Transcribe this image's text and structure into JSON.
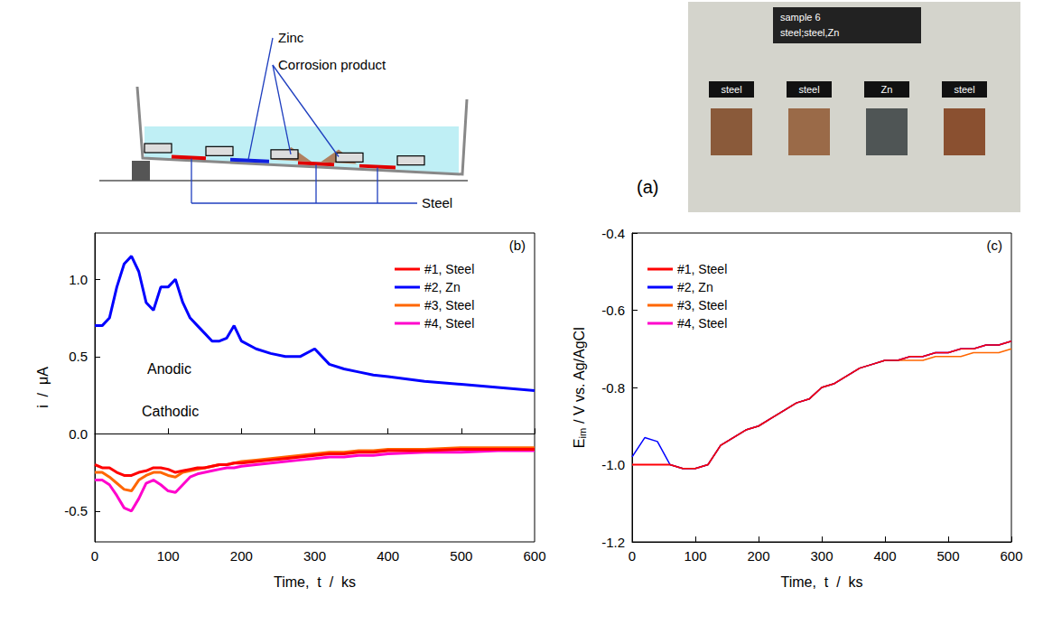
{
  "diagram": {
    "zinc": "Zinc",
    "corrosion_product": "Corrosion product",
    "steel": "Steel"
  },
  "photo": {
    "panel_label": "(a)",
    "header": [
      "sample 6",
      "steel;steel,Zn"
    ],
    "sample_labels": [
      "steel",
      "steel",
      "Zn",
      "steel"
    ]
  },
  "chart_data": [
    {
      "type": "line",
      "panel_label": "(b)",
      "x_label": "Time,  t  /  ks",
      "y_label": {
        "text": "i  /  μA"
      },
      "annotations": [
        "Anodic",
        "Cathodic"
      ],
      "x": [
        0,
        10,
        20,
        30,
        40,
        50,
        60,
        70,
        80,
        90,
        100,
        110,
        120,
        130,
        140,
        150,
        160,
        170,
        180,
        190,
        200,
        220,
        240,
        260,
        280,
        300,
        320,
        340,
        360,
        380,
        400,
        450,
        500,
        550,
        600
      ],
      "xlim": [
        0,
        600
      ],
      "xticks": [
        0,
        100,
        200,
        300,
        400,
        500,
        600
      ],
      "ylim": [
        -0.7,
        1.3
      ],
      "yticks": [
        -0.5,
        {
          "value": 0,
          "label": "0.0"
        },
        0.5,
        {
          "value": 1,
          "label": "1.0"
        }
      ],
      "grid": false,
      "legend": "upper right",
      "series": [
        {
          "name": "#1, Steel",
          "color": "#ff0000",
          "values": [
            -0.2,
            -0.22,
            -0.22,
            -0.25,
            -0.27,
            -0.27,
            -0.25,
            -0.24,
            -0.22,
            -0.22,
            -0.23,
            -0.25,
            -0.24,
            -0.23,
            -0.22,
            -0.22,
            -0.21,
            -0.2,
            -0.2,
            -0.19,
            -0.19,
            -0.18,
            -0.17,
            -0.16,
            -0.15,
            -0.14,
            -0.13,
            -0.13,
            -0.12,
            -0.12,
            -0.11,
            -0.11,
            -0.1,
            -0.1,
            -0.1
          ]
        },
        {
          "name": "#2, Zn",
          "color": "#0000ff",
          "values": [
            0.7,
            0.7,
            0.75,
            0.95,
            1.1,
            1.15,
            1.05,
            0.85,
            0.8,
            0.95,
            0.95,
            1.0,
            0.85,
            0.75,
            0.7,
            0.65,
            0.6,
            0.6,
            0.62,
            0.7,
            0.6,
            0.55,
            0.52,
            0.5,
            0.5,
            0.55,
            0.45,
            0.42,
            0.4,
            0.38,
            0.37,
            0.34,
            0.32,
            0.3,
            0.28
          ]
        },
        {
          "name": "#3, Steel",
          "color": "#ff6600",
          "values": [
            -0.25,
            -0.25,
            -0.28,
            -0.32,
            -0.36,
            -0.37,
            -0.3,
            -0.27,
            -0.25,
            -0.25,
            -0.27,
            -0.28,
            -0.25,
            -0.24,
            -0.23,
            -0.22,
            -0.21,
            -0.2,
            -0.2,
            -0.19,
            -0.18,
            -0.17,
            -0.16,
            -0.15,
            -0.14,
            -0.13,
            -0.12,
            -0.12,
            -0.11,
            -0.11,
            -0.1,
            -0.1,
            -0.09,
            -0.09,
            -0.09
          ]
        },
        {
          "name": "#4, Steel",
          "color": "#ff00cc",
          "values": [
            -0.3,
            -0.3,
            -0.33,
            -0.4,
            -0.48,
            -0.5,
            -0.42,
            -0.32,
            -0.3,
            -0.33,
            -0.37,
            -0.38,
            -0.33,
            -0.28,
            -0.26,
            -0.25,
            -0.24,
            -0.23,
            -0.22,
            -0.22,
            -0.21,
            -0.2,
            -0.19,
            -0.18,
            -0.17,
            -0.16,
            -0.15,
            -0.15,
            -0.14,
            -0.14,
            -0.13,
            -0.12,
            -0.12,
            -0.11,
            -0.11
          ]
        }
      ]
    },
    {
      "type": "line",
      "panel_label": "(c)",
      "x_label": "Time,  t  /  ks",
      "y_label": {
        "text": "E",
        "sub": "im",
        "rest": " / V vs. Ag/AgCl"
      },
      "x": [
        0,
        20,
        40,
        60,
        80,
        100,
        120,
        140,
        160,
        180,
        200,
        220,
        240,
        260,
        280,
        300,
        320,
        340,
        360,
        380,
        400,
        420,
        440,
        460,
        480,
        500,
        520,
        540,
        560,
        580,
        600
      ],
      "xlim": [
        0,
        600
      ],
      "xticks": [
        0,
        100,
        200,
        300,
        400,
        500,
        600
      ],
      "ylim": [
        -1.2,
        -0.4
      ],
      "yticks": [
        -1.2,
        {
          "value": -1.0,
          "label": "-1.0"
        },
        -0.8,
        -0.6,
        -0.4
      ],
      "grid": false,
      "legend": "upper left",
      "series": [
        {
          "name": "#1, Steel",
          "color": "#ff0000",
          "values": [
            -1.0,
            -1.0,
            -1.0,
            -1.0,
            -1.01,
            -1.01,
            -1.0,
            -0.95,
            -0.93,
            -0.91,
            -0.9,
            -0.88,
            -0.86,
            -0.84,
            -0.83,
            -0.8,
            -0.79,
            -0.77,
            -0.75,
            -0.74,
            -0.73,
            -0.73,
            -0.72,
            -0.72,
            -0.71,
            -0.71,
            -0.7,
            -0.7,
            -0.69,
            -0.69,
            -0.68
          ]
        },
        {
          "name": "#2, Zn",
          "color": "#0000ff",
          "values": [
            -0.98,
            -0.93,
            -0.94,
            -1.0,
            -1.01,
            -1.01,
            -1.0,
            -0.95,
            -0.93,
            -0.91,
            -0.9,
            -0.88,
            -0.86,
            -0.84,
            -0.83,
            -0.8,
            -0.79,
            -0.77,
            -0.75,
            -0.74,
            -0.73,
            -0.73,
            -0.72,
            -0.72,
            -0.71,
            -0.71,
            -0.7,
            -0.7,
            -0.69,
            -0.69,
            -0.68
          ]
        },
        {
          "name": "#3, Steel",
          "color": "#ff6600",
          "values": [
            -1.0,
            -1.0,
            -1.0,
            -1.0,
            -1.01,
            -1.01,
            -1.0,
            -0.95,
            -0.93,
            -0.91,
            -0.9,
            -0.88,
            -0.86,
            -0.84,
            -0.83,
            -0.8,
            -0.79,
            -0.77,
            -0.75,
            -0.74,
            -0.73,
            -0.73,
            -0.73,
            -0.73,
            -0.72,
            -0.72,
            -0.72,
            -0.71,
            -0.71,
            -0.71,
            -0.7
          ]
        },
        {
          "name": "#4, Steel",
          "color": "#ff00cc",
          "values": [
            -1.0,
            -1.0,
            -1.0,
            -1.0,
            -1.01,
            -1.01,
            -1.0,
            -0.95,
            -0.93,
            -0.91,
            -0.9,
            -0.88,
            -0.86,
            -0.84,
            -0.83,
            -0.8,
            -0.79,
            -0.77,
            -0.75,
            -0.74,
            -0.73,
            -0.73,
            -0.72,
            -0.72,
            -0.71,
            -0.71,
            -0.7,
            -0.7,
            -0.69,
            -0.69,
            -0.68
          ]
        }
      ]
    }
  ]
}
